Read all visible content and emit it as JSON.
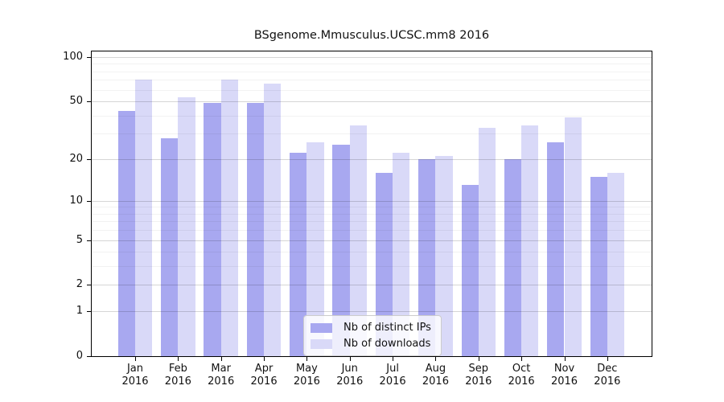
{
  "chart_data": {
    "type": "bar",
    "title": "BSgenome.Mmusculus.UCSC.mm8 2016",
    "categories": [
      "Jan",
      "Feb",
      "Mar",
      "Apr",
      "May",
      "Jun",
      "Jul",
      "Aug",
      "Sep",
      "Oct",
      "Nov",
      "Dec"
    ],
    "year": "2016",
    "series": [
      {
        "name": "Nb of distinct IPs",
        "color": "#a8a8f0",
        "values": [
          43,
          28,
          49,
          49,
          22,
          25,
          16,
          20,
          13,
          20,
          26,
          15
        ]
      },
      {
        "name": "Nb of downloads",
        "color": "#d9d9f8",
        "values": [
          70,
          53,
          70,
          66,
          26,
          34,
          22,
          21,
          33,
          34,
          39,
          16
        ]
      }
    ],
    "xlabel": "",
    "ylabel": "",
    "y_axis": {
      "scale": "log1p",
      "range": [
        0,
        100
      ],
      "major_ticks": [
        0,
        1,
        2,
        5,
        10,
        20,
        50,
        100
      ],
      "minor_gridlines": [
        3,
        4,
        6,
        7,
        8,
        9,
        30,
        40,
        60,
        70,
        80,
        90
      ]
    },
    "grid": "on",
    "legend_position": "bottom-center"
  },
  "colors": {
    "axis": "#000000",
    "major_gridline": "rgba(0,0,0,0.16)",
    "minor_gridline": "rgba(0,0,0,0.05)",
    "legend_border": "#cccccc"
  }
}
